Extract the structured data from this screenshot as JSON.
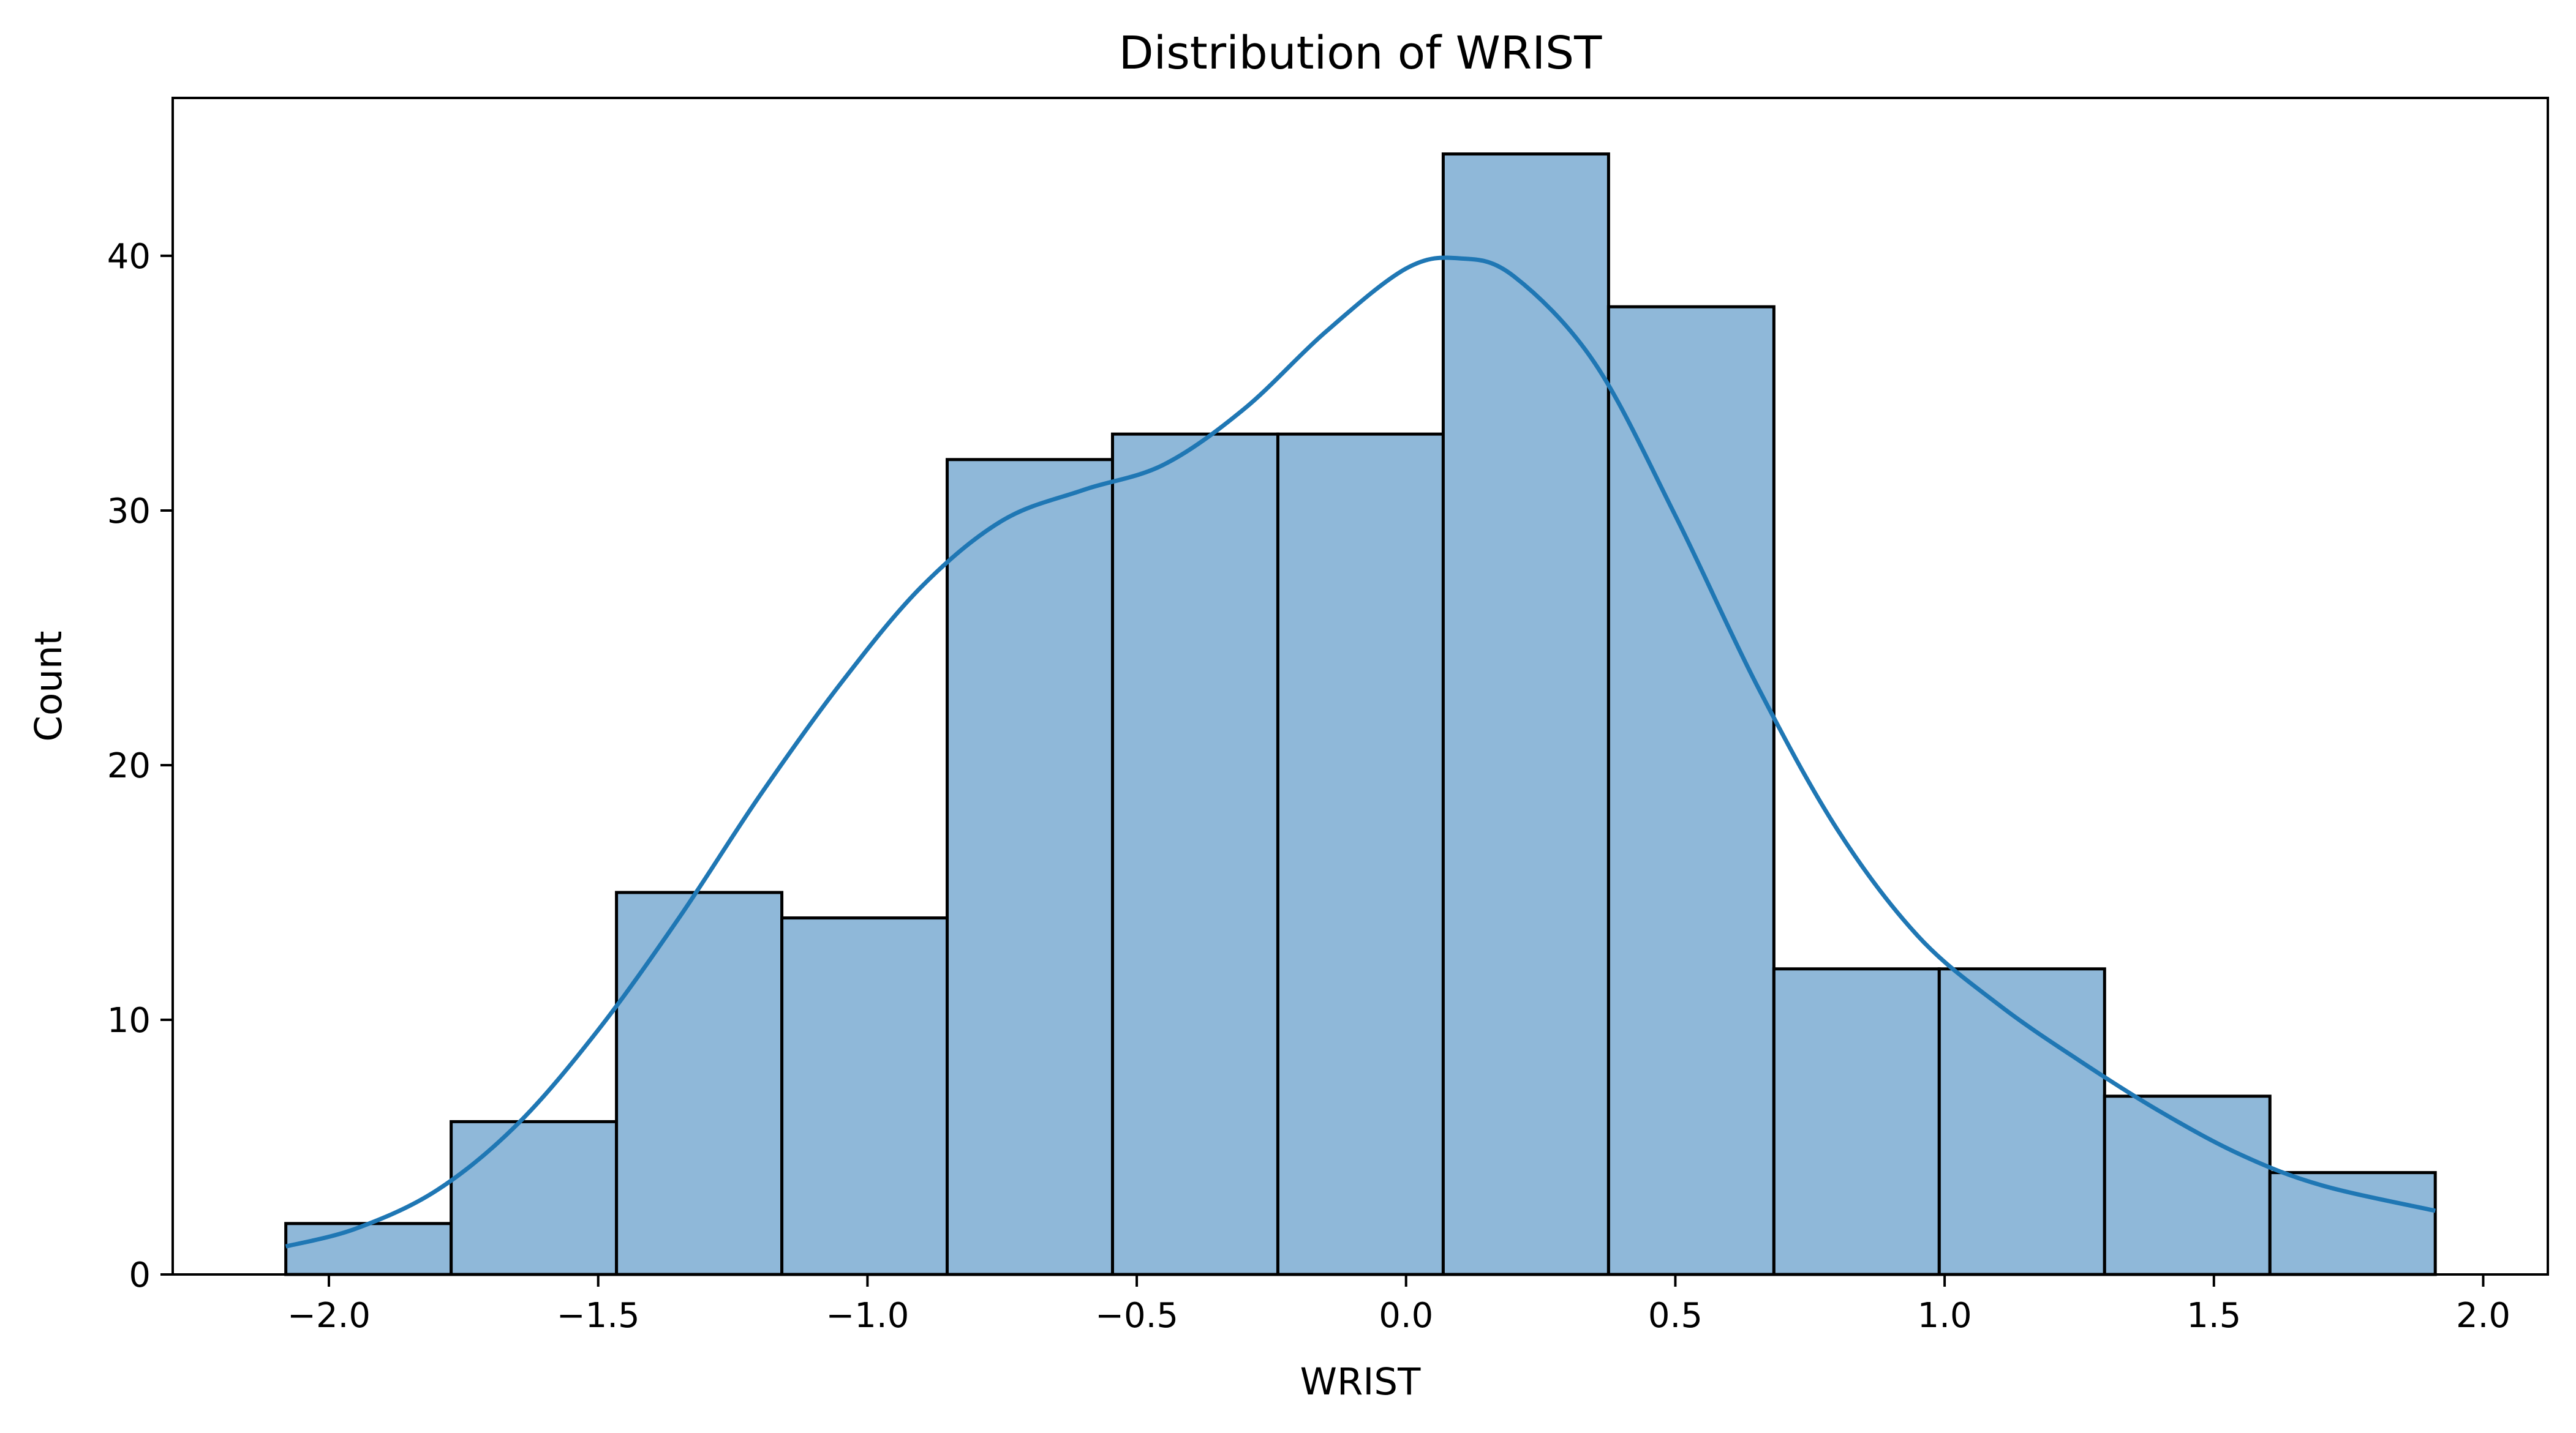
{
  "chart_data": {
    "type": "histogram",
    "title": "Distribution of WRIST",
    "xlabel": "WRIST",
    "ylabel": "Count",
    "xlim": [
      -2.29,
      2.12
    ],
    "ylim": [
      0,
      46.2
    ],
    "bin_edges": [
      -2.08,
      -1.773,
      -1.466,
      -1.159,
      -0.852,
      -0.545,
      -0.238,
      0.069,
      0.376,
      0.683,
      0.99,
      1.297,
      1.604,
      1.911
    ],
    "counts": [
      2,
      6,
      15,
      14,
      32,
      33,
      33,
      44,
      38,
      12,
      12,
      7,
      4
    ],
    "kde": {
      "x": [
        -2.08,
        -1.95,
        -1.8,
        -1.65,
        -1.5,
        -1.35,
        -1.2,
        -1.05,
        -0.9,
        -0.75,
        -0.6,
        -0.45,
        -0.3,
        -0.15,
        0.0,
        0.1,
        0.2,
        0.35,
        0.5,
        0.65,
        0.8,
        0.95,
        1.1,
        1.25,
        1.4,
        1.55,
        1.7,
        1.911
      ],
      "y": [
        1.1,
        1.8,
        3.3,
        5.9,
        9.6,
        14.0,
        18.8,
        23.2,
        27.0,
        29.6,
        30.8,
        31.8,
        34.0,
        37.0,
        39.5,
        39.9,
        39.2,
        35.8,
        29.8,
        23.2,
        17.5,
        13.3,
        10.6,
        8.4,
        6.4,
        4.7,
        3.5,
        2.5
      ]
    },
    "xticks": [
      -2.0,
      -1.5,
      -1.0,
      -0.5,
      0.0,
      0.5,
      1.0,
      1.5,
      2.0
    ],
    "xtick_labels": [
      "−2.0",
      "−1.5",
      "−1.0",
      "−0.5",
      "0.0",
      "0.5",
      "1.0",
      "1.5",
      "2.0"
    ],
    "yticks": [
      0,
      10,
      20,
      30,
      40
    ],
    "ytick_labels": [
      "0",
      "10",
      "20",
      "30",
      "40"
    ],
    "colors": {
      "bar_fill": "#8fb8d9",
      "bar_edge": "#000000",
      "kde_line": "#1f77b4"
    },
    "grid": false,
    "legend": "none"
  }
}
